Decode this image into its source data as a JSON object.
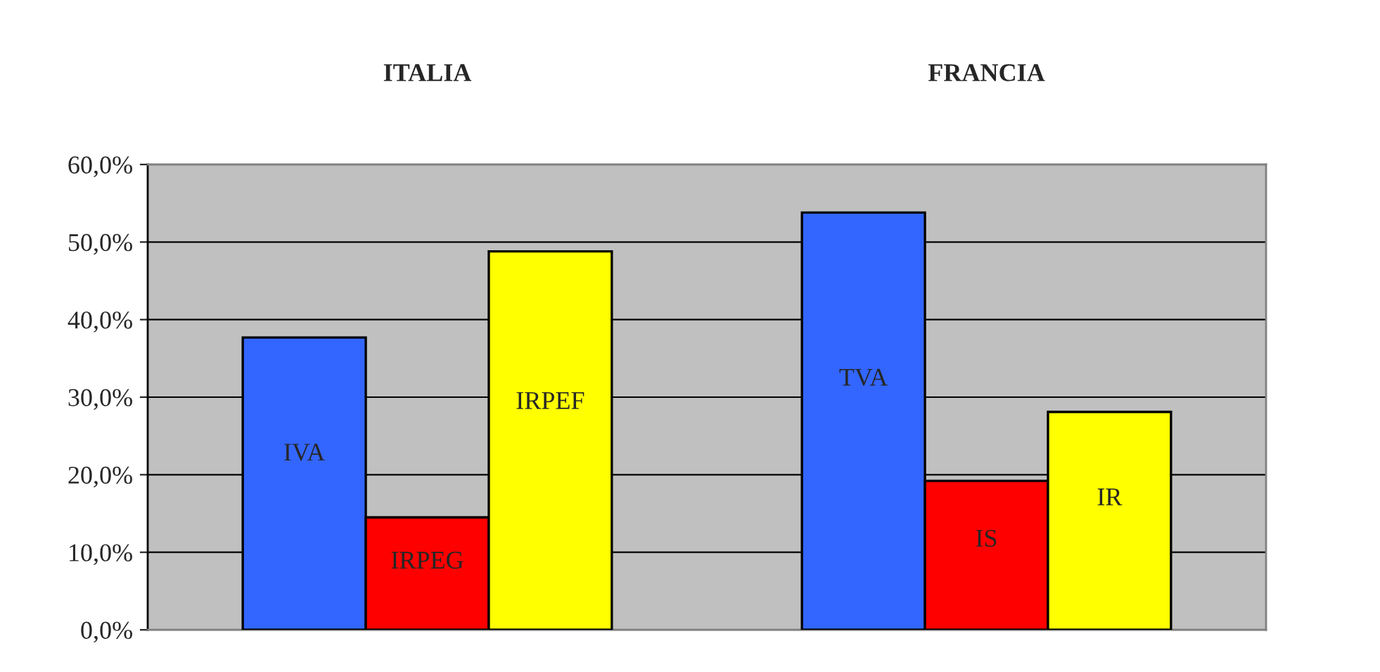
{
  "chart_data": {
    "type": "bar",
    "categories": [
      "ITALIA",
      "FRANCIA"
    ],
    "series": [
      {
        "color": "#3366ff",
        "values": [
          37.7,
          53.8
        ]
      },
      {
        "color": "#ff0000",
        "values": [
          14.5,
          19.2
        ]
      },
      {
        "color": "#ffff00",
        "values": [
          48.8,
          28.1
        ]
      }
    ],
    "annotations": [
      "IVA",
      "IRPEG",
      "IRPEF",
      "TVA",
      "IS",
      "IR"
    ],
    "ylim": [
      0,
      60
    ],
    "yticks": [
      {
        "value": 0,
        "label": "0,0%"
      },
      {
        "value": 10,
        "label": "10,0%"
      },
      {
        "value": 20,
        "label": "20,0%"
      },
      {
        "value": 30,
        "label": "30,0%"
      },
      {
        "value": 40,
        "label": "40,0%"
      },
      {
        "value": 50,
        "label": "50,0%"
      },
      {
        "value": 60,
        "label": "60,0%"
      }
    ],
    "grid": "y"
  }
}
